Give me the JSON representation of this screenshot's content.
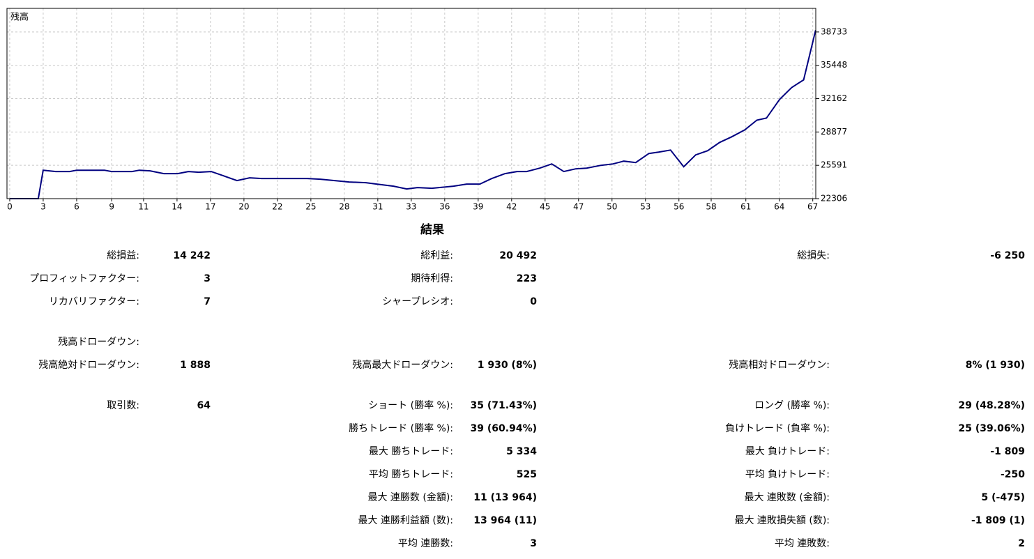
{
  "chart_data": {
    "type": "line",
    "title": "残高",
    "color": "#000080",
    "grid": true,
    "xlim": [
      -0.23,
      67.21
    ],
    "ylim": [
      22306,
      41060
    ],
    "yticks": [
      22306,
      25591,
      28877,
      32162,
      35448,
      38733
    ],
    "xticks": [
      0,
      {
        "value": 2.79,
        "label": "3"
      },
      {
        "value": 5.58,
        "label": "6"
      },
      {
        "value": 8.5,
        "label": "9"
      },
      {
        "value": 11.16,
        "label": "11"
      },
      {
        "value": 13.95,
        "label": "14"
      },
      {
        "value": 16.74,
        "label": "17"
      },
      {
        "value": 19.53,
        "label": "20"
      },
      {
        "value": 22.32,
        "label": "22"
      },
      {
        "value": 25.11,
        "label": "25"
      },
      {
        "value": 27.9,
        "label": "28"
      },
      {
        "value": 30.69,
        "label": "31"
      },
      {
        "value": 33.48,
        "label": "33"
      },
      {
        "value": 36.27,
        "label": "36"
      },
      {
        "value": 39.06,
        "label": "39"
      },
      {
        "value": 41.85,
        "label": "42"
      },
      {
        "value": 44.64,
        "label": "45"
      },
      {
        "value": 47.43,
        "label": "47"
      },
      {
        "value": 50.22,
        "label": "50"
      },
      {
        "value": 53.01,
        "label": "53"
      },
      {
        "value": 55.8,
        "label": "56"
      },
      {
        "value": 58.49,
        "label": "58"
      },
      {
        "value": 61.38,
        "label": "61"
      },
      {
        "value": 64.17,
        "label": "64"
      },
      {
        "value": 66.96,
        "label": "67"
      }
    ],
    "x": [
      0,
      2.38,
      2.79,
      3.84,
      5,
      5.58,
      7.9,
      8.49,
      10.2,
      10.8,
      11.7,
      12.85,
      14,
      14.9,
      15.76,
      16.8,
      17.8,
      18.95,
      20,
      21,
      24.8,
      25.9,
      27.7,
      28.3,
      29.7,
      30.6,
      32,
      33.1,
      34,
      35.2,
      37,
      38.1,
      39.2,
      40.2,
      41.3,
      42.3,
      43.1,
      44.2,
      45.2,
      46.2,
      47.2,
      48.1,
      49.3,
      50.3,
      51.2,
      52.2,
      53.3,
      54.1,
      55.1,
      56.2,
      57.2,
      58.2,
      59.2,
      60.2,
      61.3,
      62.3,
      63.1,
      64.2,
      65.2,
      66.2,
      67.2
    ],
    "values": [
      22306,
      22306,
      25112,
      24975,
      24975,
      25112,
      25112,
      24975,
      24975,
      25112,
      25044,
      24770,
      24770,
      24975,
      24907,
      24975,
      24565,
      24086,
      24360,
      24291,
      24291,
      24223,
      24017,
      23949,
      23880,
      23743,
      23538,
      23264,
      23401,
      23333,
      23538,
      23743,
      23743,
      24291,
      24770,
      24975,
      24975,
      25318,
      25729,
      24975,
      25249,
      25318,
      25592,
      25729,
      26002,
      25866,
      26755,
      26892,
      27097,
      25455,
      26618,
      27029,
      27850,
      28398,
      29083,
      30041,
      30246,
      32094,
      33258,
      34011,
      38900
    ]
  },
  "report": {
    "title": "結果",
    "rows": [
      {
        "left": {
          "label": "総損益:",
          "value": "14 242"
        },
        "middle": {
          "label": "総利益:",
          "value": "20 492"
        },
        "right": {
          "label": "総損失:",
          "value": "-6 250"
        }
      },
      {
        "left": {
          "label": "プロフィットファクター:",
          "value": "3"
        },
        "middle": {
          "label": "期待利得:",
          "value": "223"
        }
      },
      {
        "left": {
          "label": "リカバリファクター:",
          "value": "7"
        },
        "middle": {
          "label": "シャープレシオ:",
          "value": "0"
        }
      },
      {
        "left": {
          "label": "残高ドローダウン:"
        }
      },
      {
        "left": {
          "label": "残高絶対ドローダウン:",
          "value": "1 888"
        },
        "middle": {
          "label": "残高最大ドローダウン:",
          "value": "1 930 (8%)"
        },
        "right": {
          "label": "残高相対ドローダウン:",
          "value": "8% (1 930)"
        }
      },
      {
        "left": {
          "label": "取引数:",
          "value": "64"
        },
        "middle": {
          "label": "ショート (勝率 %):",
          "value": "35 (71.43%)"
        },
        "right": {
          "label": "ロング (勝率 %):",
          "value": "29 (48.28%)"
        }
      },
      {
        "middle": {
          "label": "勝ちトレード (勝率 %):",
          "value": "39 (60.94%)"
        },
        "right": {
          "label": "負けトレード (負率 %):",
          "value": "25 (39.06%)"
        }
      },
      {
        "middle": {
          "label": "最大 勝ちトレード:",
          "value": "5 334"
        },
        "right": {
          "label": "最大 負けトレード:",
          "value": "-1 809"
        }
      },
      {
        "middle": {
          "label": "平均 勝ちトレード:",
          "value": "525"
        },
        "right": {
          "label": "平均 負けトレード:",
          "value": "-250"
        }
      },
      {
        "middle": {
          "label": "最大 連勝数 (金額):",
          "value": "11 (13 964)"
        },
        "right": {
          "label": "最大 連敗数 (金額):",
          "value": "5 (-475)"
        }
      },
      {
        "middle": {
          "label": "最大 連勝利益額 (数):",
          "value": "13 964 (11)"
        },
        "right": {
          "label": "最大 連敗損失額 (数):",
          "value": "-1 809 (1)"
        }
      },
      {
        "middle": {
          "label": "平均 連勝数:",
          "value": "3"
        },
        "right": {
          "label": "平均 連敗数:",
          "value": "2"
        }
      }
    ]
  }
}
